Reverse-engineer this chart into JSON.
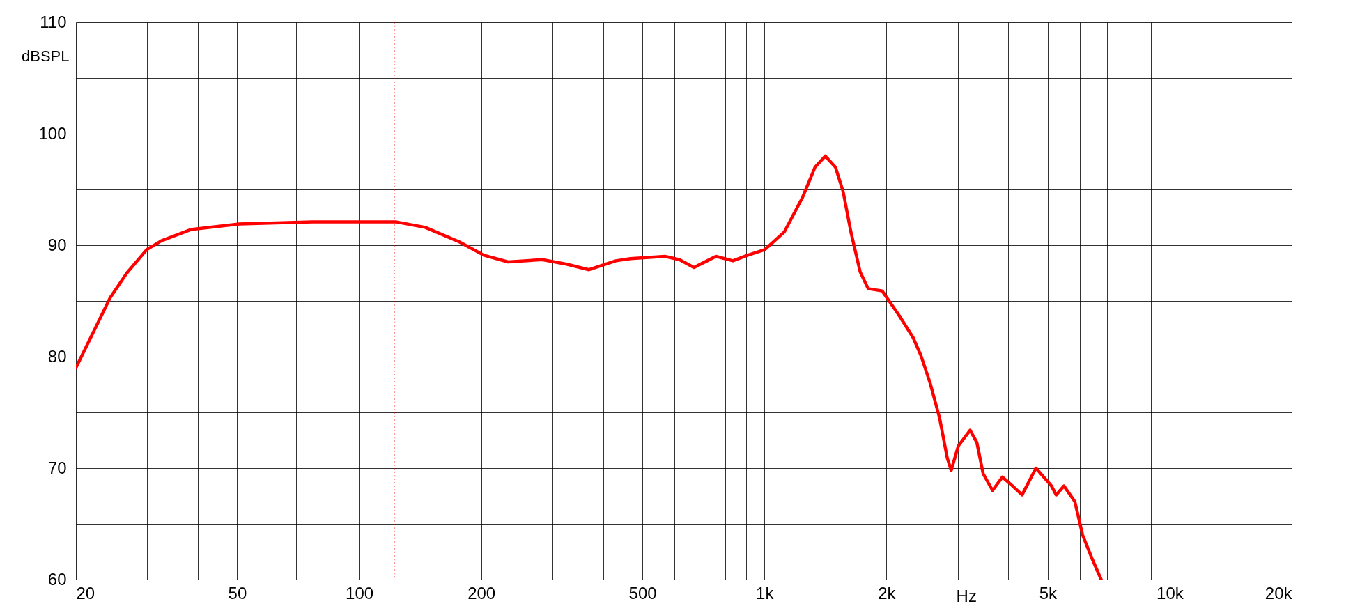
{
  "chart_data": {
    "type": "line",
    "xlabel": "Hz",
    "ylabel": "dBSPL",
    "log": "x",
    "grid": true,
    "line_style": "solid",
    "marker": "none",
    "xlim": [
      20,
      20000
    ],
    "ylim": [
      60,
      110
    ],
    "xticks": [
      20,
      {
        "value": 30,
        "label": null
      },
      {
        "value": 40,
        "label": null
      },
      50,
      {
        "value": 60,
        "label": null
      },
      {
        "value": 70,
        "label": null
      },
      {
        "value": 80,
        "label": null
      },
      {
        "value": 90,
        "label": null
      },
      100,
      200,
      {
        "value": 300,
        "label": null
      },
      {
        "value": 400,
        "label": null
      },
      500,
      {
        "value": 600,
        "label": null
      },
      {
        "value": 700,
        "label": null
      },
      {
        "value": 800,
        "label": null
      },
      {
        "value": 900,
        "label": null
      },
      {
        "value": 1000,
        "label": "1k"
      },
      {
        "value": 2000,
        "label": "2k"
      },
      {
        "value": 3000,
        "label": null
      },
      {
        "value": 4000,
        "label": null
      },
      {
        "value": 5000,
        "label": "5k"
      },
      {
        "value": 6000,
        "label": null
      },
      {
        "value": 7000,
        "label": null
      },
      {
        "value": 8000,
        "label": null
      },
      {
        "value": 9000,
        "label": null
      },
      {
        "value": 10000,
        "label": "10k"
      },
      {
        "value": 20000,
        "label": "20k"
      }
    ],
    "yticks": [
      60,
      {
        "value": 65,
        "label": null
      },
      70,
      {
        "value": 75,
        "label": null
      },
      80,
      {
        "value": 85,
        "label": null
      },
      90,
      {
        "value": 95,
        "label": null
      },
      100,
      {
        "value": 105,
        "label": null
      },
      110
    ],
    "ref_lines": [
      {
        "axis": "x",
        "value": 122,
        "color": "#ff0000",
        "line_style": "dotted"
      }
    ],
    "series": [
      {
        "color": "#ff0000",
        "x": [
          20,
          24.3,
          26.7,
          29.9,
          32.5,
          38.4,
          50.6,
          76.7,
          123,
          145.5,
          176.7,
          203,
          233,
          283,
          325,
          369,
          430,
          467,
          568,
          617,
          670,
          759,
          836,
          909,
          1002,
          1120,
          1242,
          1333,
          1413,
          1497,
          1564,
          1634,
          1723,
          1803,
          1952,
          2149,
          2328,
          2433,
          2565,
          2705,
          2826,
          2890,
          3010,
          3217,
          3343,
          3465,
          3655,
          3865,
          4096,
          4323,
          4677,
          4888,
          5108,
          5247,
          5484,
          5834,
          6097,
          6430,
          6776
        ],
        "values": [
          79.0,
          85.3,
          87.5,
          89.6,
          90.4,
          91.4,
          91.9,
          92.1,
          92.1,
          91.6,
          90.3,
          89.1,
          88.5,
          88.7,
          88.3,
          87.8,
          88.6,
          88.8,
          89.0,
          88.7,
          88.0,
          89.0,
          88.6,
          89.1,
          89.6,
          91.2,
          94.3,
          97.0,
          98.0,
          97.0,
          94.8,
          91.2,
          87.6,
          86.1,
          85.9,
          83.7,
          81.7,
          80.1,
          77.6,
          74.5,
          70.9,
          69.8,
          72.0,
          73.4,
          72.3,
          69.5,
          68.0,
          69.2,
          68.4,
          67.6,
          70.0,
          69.2,
          68.4,
          67.6,
          68.4,
          67.0,
          64.0,
          61.9,
          60.0
        ]
      }
    ]
  }
}
